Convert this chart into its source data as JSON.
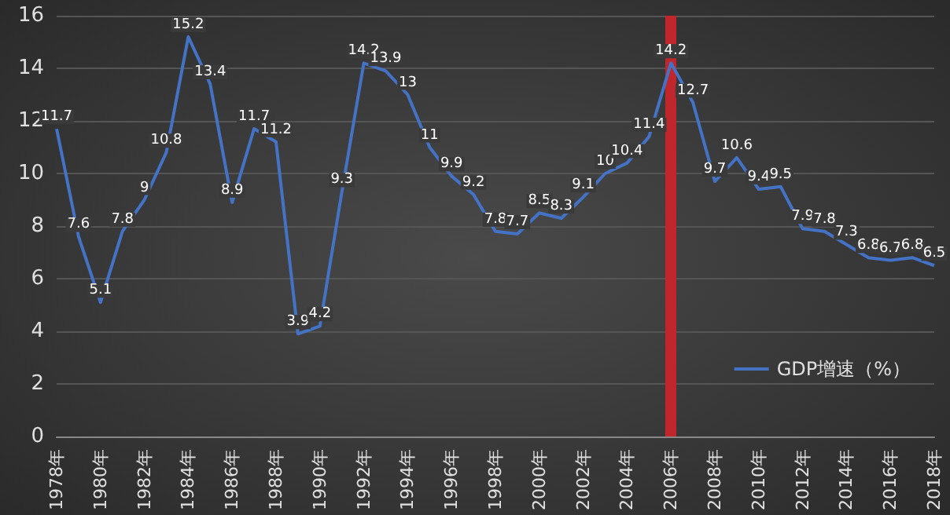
{
  "chart_data": {
    "type": "line",
    "categories": [
      "1978年",
      null,
      "1980年",
      null,
      "1982年",
      null,
      "1984年",
      null,
      "1986年",
      null,
      "1988年",
      null,
      "1990年",
      null,
      "1992年",
      null,
      "1994年",
      null,
      "1996年",
      null,
      "1998年",
      null,
      "2000年",
      null,
      "2002年",
      null,
      "2004年",
      null,
      "2006年",
      null,
      "2008年",
      null,
      "2010年",
      null,
      "2012年",
      null,
      "2014年",
      null,
      "2016年",
      null,
      "2018年"
    ],
    "series": [
      {
        "name": "GDP增速（%）",
        "color": "#4472c4",
        "values": [
          11.7,
          7.6,
          5.1,
          7.8,
          9,
          10.8,
          15.2,
          13.4,
          8.9,
          11.7,
          11.2,
          3.9,
          4.2,
          9.3,
          14.2,
          13.9,
          13,
          11,
          9.9,
          9.2,
          7.8,
          7.7,
          8.5,
          8.3,
          9.1,
          10,
          10.4,
          11.4,
          14.2,
          12.7,
          9.7,
          10.6,
          9.4,
          9.5,
          7.9,
          7.8,
          7.3,
          6.8,
          6.7,
          6.8,
          6.5
        ]
      }
    ],
    "ylim": [
      0,
      16
    ],
    "yticks": [
      0,
      2,
      4,
      6,
      8,
      10,
      12,
      14,
      16
    ],
    "grid": "y",
    "legend": "bottom right",
    "data_labels": true,
    "marker": "none",
    "line_style": "solid",
    "ref_lines": [
      {
        "axis": "x",
        "value": "2006年",
        "color": "#c0272d"
      }
    ]
  }
}
